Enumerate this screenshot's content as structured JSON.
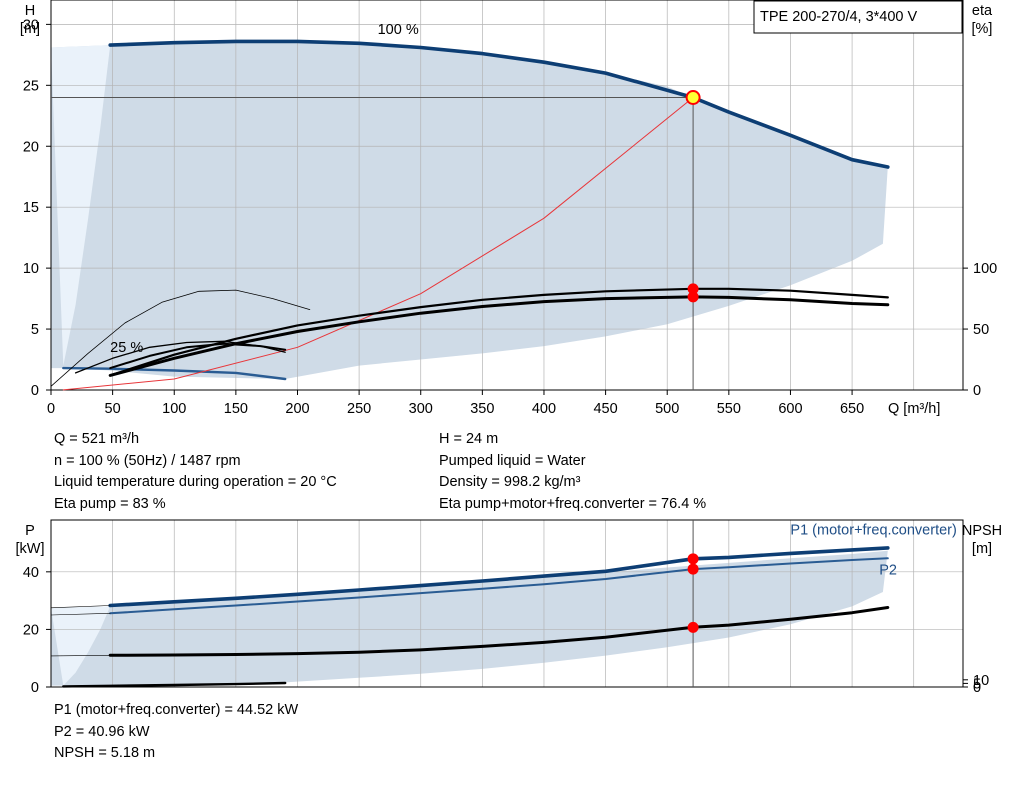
{
  "chart_data": [
    {
      "type": "line",
      "name": "head-eta",
      "badge": "TPE 200-270/4, 3*400 V",
      "y_title": "H",
      "y_unit": "[m]",
      "y2_title": "eta",
      "y2_unit": "[%]",
      "x_title": "Q [m³/h]",
      "xlim": [
        0,
        740
      ],
      "ylim": [
        0,
        32
      ],
      "x_ticks": [
        0,
        50,
        100,
        150,
        200,
        250,
        300,
        350,
        400,
        450,
        500,
        550,
        600,
        650
      ],
      "y_ticks": [
        0,
        5,
        10,
        15,
        20,
        25,
        30
      ],
      "y2_ticks": [
        0,
        50,
        100
      ],
      "y2_per_y": 10,
      "grid": true,
      "labels": [
        {
          "text": "100 %",
          "x": 265,
          "y": 29.2
        },
        {
          "text": "25 %",
          "x": 48,
          "y": 3.1
        }
      ],
      "envelope": {
        "upper": [
          [
            0,
            28.1
          ],
          [
            48,
            28.3
          ],
          [
            100,
            28.5
          ],
          [
            150,
            28.6
          ],
          [
            200,
            28.6
          ],
          [
            250,
            28.45
          ],
          [
            300,
            28.1
          ],
          [
            350,
            27.6
          ],
          [
            400,
            26.9
          ],
          [
            450,
            26.0
          ],
          [
            500,
            24.9
          ],
          [
            520,
            24.0
          ],
          [
            550,
            22.8
          ],
          [
            600,
            20.9
          ],
          [
            650,
            18.9
          ],
          [
            679,
            18.3
          ]
        ],
        "lower": [
          [
            675,
            12.0
          ],
          [
            650,
            10.6
          ],
          [
            600,
            8.6
          ],
          [
            550,
            6.9
          ],
          [
            500,
            5.4
          ],
          [
            450,
            4.4
          ],
          [
            400,
            3.6
          ],
          [
            350,
            3.0
          ],
          [
            300,
            2.5
          ],
          [
            250,
            2.0
          ],
          [
            190,
            0.9
          ],
          [
            100,
            1.1
          ],
          [
            48,
            1.6
          ],
          [
            10,
            1.8
          ],
          [
            0,
            1.8
          ]
        ],
        "light_upper": [
          [
            0,
            28.1
          ],
          [
            48,
            28.3
          ],
          [
            40,
            21.5
          ],
          [
            30,
            14.0
          ],
          [
            20,
            7.0
          ],
          [
            10,
            2.0
          ]
        ]
      },
      "series": [
        {
          "role": "head-100",
          "color": "#0d3e74",
          "width": 3.6,
          "points": [
            [
              48,
              28.3
            ],
            [
              100,
              28.5
            ],
            [
              150,
              28.6
            ],
            [
              200,
              28.6
            ],
            [
              250,
              28.45
            ],
            [
              300,
              28.1
            ],
            [
              350,
              27.6
            ],
            [
              400,
              26.9
            ],
            [
              450,
              26.0
            ],
            [
              521,
              24.0
            ],
            [
              550,
              22.8
            ],
            [
              600,
              20.9
            ],
            [
              650,
              18.9
            ],
            [
              679,
              18.3
            ]
          ]
        },
        {
          "role": "head-25",
          "color": "#2a5c93",
          "width": 2.4,
          "points": [
            [
              10,
              1.8
            ],
            [
              48,
              1.75
            ],
            [
              100,
              1.6
            ],
            [
              150,
              1.4
            ],
            [
              190,
              0.9
            ]
          ]
        },
        {
          "role": "system-curve",
          "color": "#e8363a",
          "width": 1,
          "points": [
            [
              10,
              0.01
            ],
            [
              100,
              0.9
            ],
            [
              200,
              3.5
            ],
            [
              300,
              7.9
            ],
            [
              400,
              14.1
            ],
            [
              521,
              24.0
            ]
          ]
        },
        {
          "role": "eta-pump",
          "color": "#000000",
          "width": 2.2,
          "points": [
            [
              48,
              1.2
            ],
            [
              100,
              2.9
            ],
            [
              150,
              4.2
            ],
            [
              200,
              5.3
            ],
            [
              250,
              6.1
            ],
            [
              300,
              6.8
            ],
            [
              350,
              7.4
            ],
            [
              400,
              7.8
            ],
            [
              450,
              8.1
            ],
            [
              521,
              8.3
            ],
            [
              550,
              8.3
            ],
            [
              600,
              8.15
            ],
            [
              650,
              7.8
            ],
            [
              679,
              7.6
            ]
          ]
        },
        {
          "role": "eta-total",
          "color": "#000000",
          "width": 3,
          "points": [
            [
              48,
              1.2
            ],
            [
              100,
              2.6
            ],
            [
              150,
              3.8
            ],
            [
              200,
              4.8
            ],
            [
              250,
              5.6
            ],
            [
              300,
              6.3
            ],
            [
              350,
              6.85
            ],
            [
              400,
              7.25
            ],
            [
              450,
              7.5
            ],
            [
              521,
              7.64
            ],
            [
              550,
              7.6
            ],
            [
              600,
              7.4
            ],
            [
              650,
              7.1
            ],
            [
              679,
              7.0
            ]
          ]
        },
        {
          "role": "eta-thin-outer",
          "color": "#000000",
          "width": 0.8,
          "points": [
            [
              0,
              0.3
            ],
            [
              30,
              3.0
            ],
            [
              60,
              5.5
            ],
            [
              90,
              7.2
            ],
            [
              120,
              8.1
            ],
            [
              150,
              8.2
            ],
            [
              180,
              7.5
            ],
            [
              210,
              6.6
            ]
          ]
        },
        {
          "role": "eta-25",
          "color": "#000000",
          "width": 2,
          "points": [
            [
              48,
              1.8
            ],
            [
              80,
              2.8
            ],
            [
              110,
              3.5
            ],
            [
              140,
              3.8
            ],
            [
              170,
              3.6
            ],
            [
              190,
              3.3
            ]
          ]
        },
        {
          "role": "eta-25b",
          "color": "#000000",
          "width": 1.3,
          "points": [
            [
              20,
              1.4
            ],
            [
              50,
              2.6
            ],
            [
              80,
              3.5
            ],
            [
              110,
              3.9
            ],
            [
              140,
              4.0
            ],
            [
              170,
              3.6
            ],
            [
              190,
              3.1
            ]
          ]
        }
      ],
      "guides": {
        "x": 521,
        "y": 24.0
      },
      "duty_point": {
        "x": 521,
        "y": 24.0
      },
      "markers": [
        {
          "x": 521,
          "y": 8.3
        },
        {
          "x": 521,
          "y": 7.64
        }
      ]
    },
    {
      "type": "line",
      "name": "power-npsh",
      "y_title": "P",
      "y_unit": "[kW]",
      "y2_title": "NPSH",
      "y2_unit": "[m]",
      "xlim": [
        0,
        740
      ],
      "ylim": [
        0,
        58
      ],
      "y_ticks": [
        0,
        20,
        40
      ],
      "y2_ticks": [
        0,
        5,
        10
      ],
      "y2_per_y": 4,
      "grid": true,
      "series_labels": [
        {
          "text": "P1 (motor+freq.converter)",
          "x": 735,
          "y": 53,
          "anchor": "end"
        },
        {
          "text": "P2",
          "x": 672,
          "y": 39,
          "anchor": "start"
        }
      ],
      "envelope": {
        "upper": [
          [
            0,
            27.5
          ],
          [
            48,
            28.0
          ],
          [
            100,
            29.3
          ],
          [
            150,
            30.6
          ],
          [
            200,
            32.0
          ],
          [
            250,
            33.5
          ],
          [
            300,
            35.0
          ],
          [
            350,
            36.6
          ],
          [
            400,
            38.2
          ],
          [
            450,
            39.8
          ],
          [
            500,
            41.5
          ],
          [
            550,
            43.1
          ],
          [
            600,
            44.7
          ],
          [
            650,
            46.2
          ],
          [
            679,
            47.3
          ]
        ],
        "lower": [
          [
            675,
            33.0
          ],
          [
            650,
            28.0
          ],
          [
            600,
            21.8
          ],
          [
            550,
            17.2
          ],
          [
            500,
            13.8
          ],
          [
            450,
            10.9
          ],
          [
            400,
            8.4
          ],
          [
            350,
            6.3
          ],
          [
            300,
            4.6
          ],
          [
            250,
            3.2
          ],
          [
            190,
            1.6
          ],
          [
            100,
            1.0
          ],
          [
            48,
            0.8
          ],
          [
            10,
            0.5
          ],
          [
            0,
            0.5
          ]
        ],
        "light_upper": [
          [
            0,
            27.5
          ],
          [
            48,
            28.0
          ],
          [
            40,
            20.0
          ],
          [
            30,
            12.0
          ],
          [
            20,
            5.0
          ],
          [
            10,
            0.5
          ]
        ]
      },
      "series": [
        {
          "role": "p1",
          "color": "#0d3e74",
          "width": 3.6,
          "points": [
            [
              48,
              28.3
            ],
            [
              100,
              29.6
            ],
            [
              150,
              30.8
            ],
            [
              200,
              32.2
            ],
            [
              250,
              33.7
            ],
            [
              300,
              35.2
            ],
            [
              350,
              36.8
            ],
            [
              400,
              38.5
            ],
            [
              450,
              40.2
            ],
            [
              521,
              44.52
            ],
            [
              550,
              45.0
            ],
            [
              600,
              46.4
            ],
            [
              650,
              47.6
            ],
            [
              679,
              48.3
            ]
          ]
        },
        {
          "role": "p2",
          "color": "#2a5c93",
          "width": 2,
          "points": [
            [
              48,
              25.6
            ],
            [
              100,
              27.0
            ],
            [
              150,
              28.3
            ],
            [
              200,
              29.7
            ],
            [
              250,
              31.1
            ],
            [
              300,
              32.6
            ],
            [
              350,
              34.1
            ],
            [
              400,
              35.7
            ],
            [
              450,
              37.5
            ],
            [
              521,
              40.96
            ],
            [
              550,
              41.6
            ],
            [
              600,
              42.9
            ],
            [
              650,
              44.1
            ],
            [
              679,
              44.7
            ]
          ]
        },
        {
          "role": "p1-ext",
          "color": "#000000",
          "width": 0.6,
          "points": [
            [
              0,
              27.5
            ],
            [
              48,
              28.3
            ]
          ]
        },
        {
          "role": "p2-ext",
          "color": "#000000",
          "width": 0.6,
          "points": [
            [
              0,
              25.0
            ],
            [
              48,
              25.6
            ]
          ]
        },
        {
          "role": "npsh",
          "color": "#000000",
          "width": 3,
          "points": [
            [
              48,
              11.0
            ],
            [
              100,
              11.1
            ],
            [
              150,
              11.3
            ],
            [
              200,
              11.6
            ],
            [
              250,
              12.1
            ],
            [
              300,
              12.9
            ],
            [
              350,
              14.1
            ],
            [
              400,
              15.5
            ],
            [
              450,
              17.3
            ],
            [
              521,
              20.72
            ],
            [
              550,
              21.5
            ],
            [
              600,
              23.5
            ],
            [
              650,
              25.8
            ],
            [
              679,
              27.6
            ]
          ]
        },
        {
          "role": "npsh-ext",
          "color": "#000000",
          "width": 0.6,
          "points": [
            [
              0,
              10.8
            ],
            [
              48,
              11.0
            ]
          ]
        },
        {
          "role": "p-25",
          "color": "#000000",
          "width": 2.4,
          "points": [
            [
              10,
              0.2
            ],
            [
              48,
              0.4
            ],
            [
              100,
              0.7
            ],
            [
              150,
              1.0
            ],
            [
              190,
              1.4
            ]
          ]
        }
      ],
      "guides": {
        "x": 521
      },
      "markers": [
        {
          "x": 521,
          "y": 44.52
        },
        {
          "x": 521,
          "y": 40.96
        },
        {
          "x": 521,
          "y": 20.72
        }
      ]
    }
  ],
  "info": {
    "left_lines": [
      "Q = 521 m³/h",
      "n = 100 % (50Hz) / 1487 rpm",
      "Liquid temperature during operation = 20 °C",
      "Eta pump = 83 %"
    ],
    "right_lines": [
      "H = 24 m",
      "Pumped liquid = Water",
      "Density = 998.2 kg/m³",
      "Eta pump+motor+freq.converter = 76.4 %"
    ],
    "bottom_lines": [
      "P1 (motor+freq.converter) = 44.52 kW",
      "P2 = 40.96 kW",
      "NPSH = 5.18 m"
    ]
  },
  "colors": {
    "envelope": "#cfdbe7",
    "envelope_light": "#eaf2fa",
    "grid": "#b4b4b4",
    "curve_dark": "#0d3e74",
    "marker": "#ff0000",
    "duty_fill": "#ffff33",
    "label_blue": "#1f4e86"
  }
}
